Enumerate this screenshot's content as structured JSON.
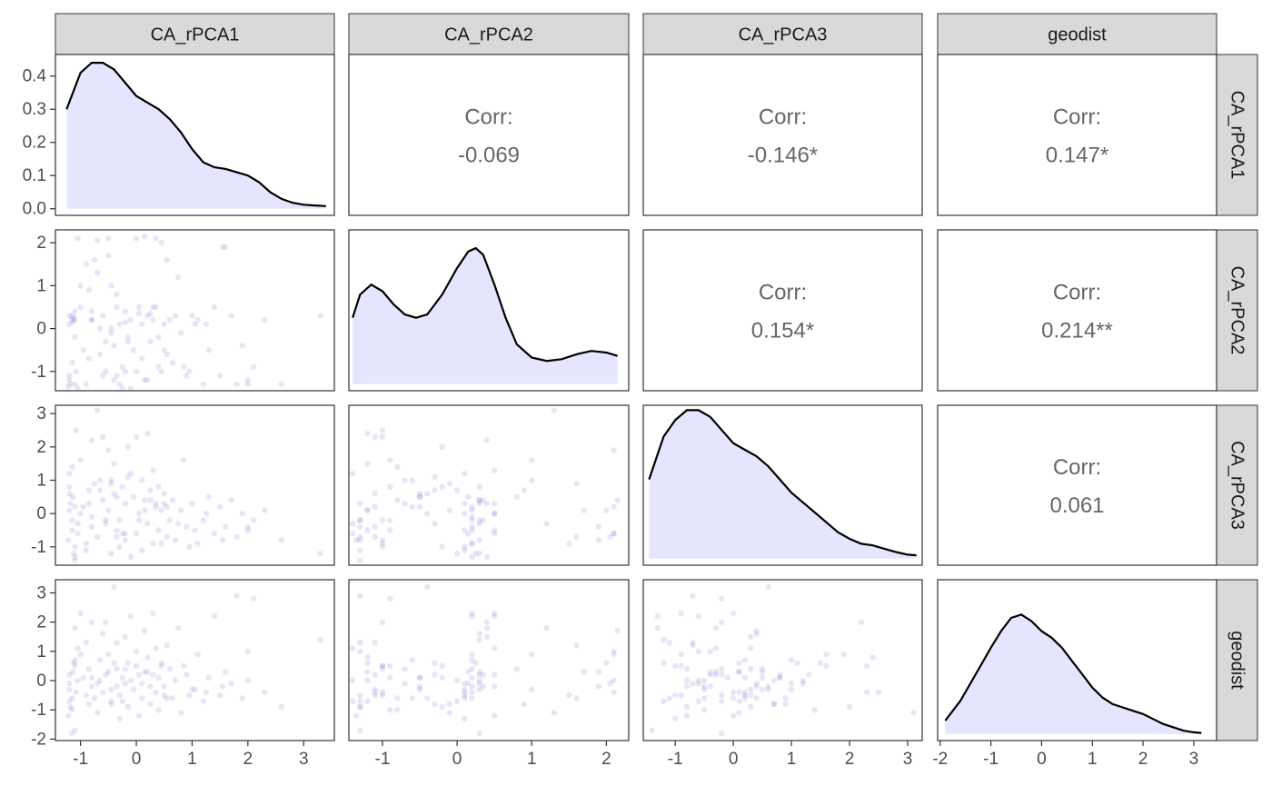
{
  "chart_data": {
    "type": "scatter",
    "variables": [
      "CA_rPCA1",
      "CA_rPCA2",
      "CA_rPCA3",
      "geodist"
    ],
    "strip_labels": [
      "CA_rPCA1",
      "CA_rPCA2",
      "CA_rPCA3",
      "geodist"
    ],
    "colors": {
      "fill": "#e5e5ff",
      "point": "#6666cc",
      "line": "#000000",
      "strip_bg": "#d9d9d9"
    },
    "axes": {
      "x_ranges": [
        [
          -1.45,
          3.55
        ],
        [
          -1.45,
          2.3
        ],
        [
          -1.55,
          3.25
        ],
        [
          -2.05,
          3.45
        ]
      ],
      "x_ticks": [
        [
          "-1",
          "0",
          "1",
          "2",
          "3"
        ],
        [
          "-1",
          "0",
          "1",
          "2"
        ],
        [
          "-1",
          "0",
          "1",
          "2",
          "3"
        ],
        [
          "-2",
          "-1",
          "0",
          "1",
          "2",
          "3"
        ]
      ],
      "y_ticks_first_row": [
        "0.0",
        "0.1",
        "0.2",
        "0.3",
        "0.4"
      ],
      "y_ticks": [
        [],
        [
          "-1",
          "0",
          "1",
          "2"
        ],
        [
          "-1",
          "0",
          "1",
          "2",
          "3"
        ],
        [
          "-2",
          "-1",
          "0",
          "1",
          "2",
          "3"
        ]
      ],
      "density_ylim": [
        -0.02,
        0.465
      ]
    },
    "correlations": [
      {
        "row": 0,
        "col": 1,
        "label": "Corr:",
        "value": "-0.069"
      },
      {
        "row": 0,
        "col": 2,
        "label": "Corr:",
        "value": "-0.146*"
      },
      {
        "row": 0,
        "col": 3,
        "label": "Corr:",
        "value": "0.147*"
      },
      {
        "row": 1,
        "col": 2,
        "label": "Corr:",
        "value": "0.154*"
      },
      {
        "row": 1,
        "col": 3,
        "label": "Corr:",
        "value": "0.214**"
      },
      {
        "row": 2,
        "col": 3,
        "label": "Corr:",
        "value": "0.061"
      }
    ],
    "densities": [
      {
        "var": "CA_rPCA1",
        "x": [
          -1.25,
          -1.0,
          -0.8,
          -0.6,
          -0.4,
          -0.2,
          0.0,
          0.2,
          0.4,
          0.6,
          0.8,
          1.0,
          1.2,
          1.4,
          1.6,
          1.8,
          2.0,
          2.2,
          2.4,
          2.6,
          2.8,
          3.0,
          3.2,
          3.4
        ],
        "y": [
          0.3,
          0.41,
          0.44,
          0.44,
          0.42,
          0.38,
          0.34,
          0.32,
          0.3,
          0.27,
          0.23,
          0.18,
          0.14,
          0.125,
          0.12,
          0.11,
          0.1,
          0.08,
          0.05,
          0.03,
          0.018,
          0.012,
          0.01,
          0.008
        ]
      },
      {
        "var": "CA_rPCA2",
        "x": [
          -1.4,
          -1.3,
          -1.15,
          -1.0,
          -0.85,
          -0.7,
          -0.55,
          -0.4,
          -0.2,
          0.0,
          0.15,
          0.25,
          0.35,
          0.5,
          0.65,
          0.8,
          1.0,
          1.2,
          1.4,
          1.6,
          1.8,
          2.0,
          2.15
        ],
        "y": [
          0.2,
          0.27,
          0.3,
          0.28,
          0.24,
          0.21,
          0.2,
          0.21,
          0.27,
          0.35,
          0.4,
          0.41,
          0.39,
          0.3,
          0.2,
          0.12,
          0.08,
          0.07,
          0.075,
          0.09,
          0.1,
          0.095,
          0.085
        ]
      },
      {
        "var": "CA_rPCA3",
        "x": [
          -1.45,
          -1.2,
          -1.0,
          -0.8,
          -0.6,
          -0.4,
          -0.2,
          0.0,
          0.2,
          0.4,
          0.6,
          0.8,
          1.0,
          1.2,
          1.4,
          1.6,
          1.8,
          2.0,
          2.2,
          2.4,
          2.6,
          2.8,
          3.0,
          3.15
        ],
        "y": [
          0.24,
          0.37,
          0.42,
          0.45,
          0.45,
          0.43,
          0.39,
          0.35,
          0.33,
          0.31,
          0.28,
          0.24,
          0.2,
          0.17,
          0.14,
          0.11,
          0.08,
          0.06,
          0.045,
          0.04,
          0.03,
          0.02,
          0.012,
          0.01
        ]
      },
      {
        "var": "geodist",
        "x": [
          -1.9,
          -1.6,
          -1.3,
          -1.0,
          -0.8,
          -0.6,
          -0.4,
          -0.2,
          0.0,
          0.2,
          0.4,
          0.6,
          0.8,
          1.0,
          1.2,
          1.4,
          1.6,
          1.8,
          2.0,
          2.2,
          2.4,
          2.6,
          2.8,
          3.0,
          3.15
        ],
        "y": [
          0.04,
          0.1,
          0.18,
          0.26,
          0.31,
          0.35,
          0.36,
          0.34,
          0.31,
          0.29,
          0.26,
          0.22,
          0.18,
          0.14,
          0.11,
          0.09,
          0.08,
          0.07,
          0.06,
          0.045,
          0.03,
          0.02,
          0.01,
          0.005,
          0.003
        ]
      }
    ],
    "observations": {
      "CA_rPCA1": [
        -1.2,
        -1.15,
        -1.1,
        -1.05,
        -1.2,
        -1.18,
        -1.12,
        -1.08,
        -1.22,
        -1.14,
        -1.2,
        -1.1,
        -1.05,
        -1.15,
        -1.0,
        -1.1,
        -1.2,
        -1.15,
        -1.0,
        -0.9,
        -0.95,
        -0.85,
        -0.9,
        -0.8,
        -0.85,
        -0.75,
        -0.8,
        -0.7,
        -0.65,
        -0.7,
        -0.6,
        -0.55,
        -0.6,
        -0.5,
        -0.45,
        -0.5,
        -0.4,
        -0.35,
        -0.4,
        -0.3,
        -0.25,
        -0.3,
        -0.2,
        -0.15,
        -0.2,
        -0.1,
        -0.05,
        -0.1,
        0.0,
        0.05,
        0.0,
        0.1,
        0.15,
        0.1,
        0.2,
        0.25,
        0.2,
        0.3,
        0.35,
        0.3,
        0.4,
        0.45,
        0.4,
        0.5,
        0.55,
        0.5,
        0.6,
        0.65,
        0.7,
        0.8,
        0.85,
        0.9,
        1.0,
        1.1,
        1.2,
        1.3,
        1.4,
        1.5,
        1.6,
        1.7,
        1.8,
        1.9,
        2.0,
        2.1,
        2.3,
        2.6,
        3.3,
        -0.55,
        -0.45,
        -0.35,
        -0.25,
        0.05,
        0.35,
        1.55,
        -0.65,
        0.95,
        -1.1,
        -0.2,
        0.15,
        0.75,
        -0.45,
        0.45,
        1.25,
        2.0,
        -0.8,
        0.25,
        -0.35,
        0.55,
        -0.15,
        1.05
      ],
      "CA_rPCA2": [
        0.3,
        0.2,
        -1.3,
        -1.4,
        0.1,
        -1.3,
        0.25,
        -1.0,
        -1.35,
        0.15,
        -1.2,
        0.4,
        2.1,
        -0.8,
        0.5,
        -0.2,
        -1.1,
        0.3,
        1.0,
        1.5,
        -0.5,
        0.9,
        -1.3,
        0.2,
        -0.7,
        1.6,
        0.4,
        2.05,
        -0.6,
        1.3,
        0.3,
        -0.3,
        -1.1,
        2.1,
        0.0,
        1.7,
        -0.4,
        0.5,
        -1.2,
        0.1,
        -0.9,
        -1.3,
        0.4,
        -0.2,
        -1.0,
        0.2,
        -0.5,
        -1.4,
        2.1,
        0.5,
        -1.0,
        0.1,
        2.15,
        -0.7,
        0.3,
        -0.3,
        -1.2,
        0.2,
        2.1,
        0.5,
        -0.9,
        2.0,
        -0.2,
        0.1,
        1.6,
        -0.5,
        0.2,
        -0.8,
        0.3,
        -0.1,
        -0.9,
        -1.1,
        0.3,
        0.2,
        -1.3,
        -0.5,
        0.5,
        -1.1,
        1.9,
        0.3,
        -1.3,
        -0.4,
        -1.2,
        -0.9,
        0.2,
        -1.3,
        0.3,
        -1.0,
        1.0,
        0.8,
        -1.4,
        0.35,
        0.5,
        1.9,
        0.0,
        -1.0,
        0.2,
        0.15,
        -1.2,
        1.2,
        -0.1,
        -1.0,
        0.1,
        -1.3,
        0.2,
        0.35,
        -1.1,
        -0.6,
        -0.3,
        0.1
      ],
      "CA_rPCA3": [
        0.8,
        -0.5,
        -1.4,
        -0.3,
        1.2,
        0.3,
        -1.2,
        2.5,
        -0.8,
        0.5,
        0.1,
        -1.3,
        -0.6,
        1.4,
        0.0,
        -1.0,
        0.6,
        -0.2,
        1.6,
        -0.9,
        0.2,
        0.7,
        -1.1,
        -0.4,
        0.3,
        0.9,
        2.2,
        -0.7,
        1.0,
        3.1,
        0.4,
        -0.3,
        2.3,
        1.9,
        -1.2,
        0.1,
        0.6,
        -0.5,
        1.5,
        -1.0,
        0.8,
        -0.2,
        0.3,
        2.0,
        -0.8,
        -1.3,
        0.5,
        1.2,
        -0.6,
        0.0,
        2.3,
        -1.1,
        0.4,
        1.0,
        -0.3,
        0.7,
        2.4,
        -0.9,
        0.2,
        1.3,
        -0.5,
        0.1,
        0.8,
        0.3,
        -0.7,
        0.6,
        -0.2,
        0.4,
        -0.8,
        0.1,
        1.6,
        -0.4,
        0.3,
        -0.9,
        -0.2,
        0.5,
        -0.6,
        0.2,
        -0.4,
        0.4,
        -0.7,
        0.0,
        -0.5,
        -0.2,
        0.1,
        -0.8,
        -1.2,
        -0.2,
        1.0,
        0.5,
        -0.6,
        -0.2,
        0.3,
        -0.8,
        0.7,
        -1.0,
        0.2,
        -0.6,
        0.1,
        -0.3,
        0.9,
        -0.9,
        0.0,
        -0.4,
        -0.1,
        0.4,
        -0.7,
        0.2,
        1.1,
        -0.5
      ],
      "geodist": [
        0.2,
        -0.6,
        -1.7,
        1.1,
        -0.1,
        -0.9,
        0.6,
        -0.4,
        -1.2,
        0.3,
        -0.7,
        1.8,
        0.0,
        -1.0,
        2.3,
        0.5,
        -0.3,
        -1.8,
        0.9,
        -0.5,
        0.1,
        -0.8,
        1.3,
        -0.2,
        0.4,
        -0.6,
        2.0,
        -0.1,
        0.7,
        -1.1,
        1.6,
        0.2,
        -0.4,
        0.9,
        -0.7,
        0.3,
        3.2,
        -0.2,
        0.6,
        -1.3,
        0.1,
        -0.5,
        1.5,
        -0.9,
        0.4,
        2.2,
        -0.3,
        0.0,
        1.0,
        -1.2,
        0.5,
        -0.6,
        1.7,
        -0.1,
        0.3,
        -0.8,
        0.8,
        2.3,
        -0.4,
        0.2,
        -1.0,
        0.6,
        0.1,
        -0.5,
        1.2,
        -0.2,
        0.4,
        -0.6,
        0.0,
        -1.1,
        0.5,
        0.2,
        -0.3,
        0.9,
        -0.7,
        0.1,
        2.2,
        -0.5,
        0.3,
        -0.1,
        2.9,
        -0.6,
        0.0,
        2.8,
        -0.4,
        -0.9,
        1.4,
        2.0,
        -0.3,
        0.4,
        -0.7,
        0.2,
        1.1,
        -0.2,
        0.0,
        -0.5,
        0.7,
        -0.1,
        0.3,
        1.8,
        -0.8,
        0.5,
        -0.4,
        1.0,
        0.1,
        -0.2,
        1.3,
        -0.6,
        0.6,
        -0.3
      ]
    }
  }
}
